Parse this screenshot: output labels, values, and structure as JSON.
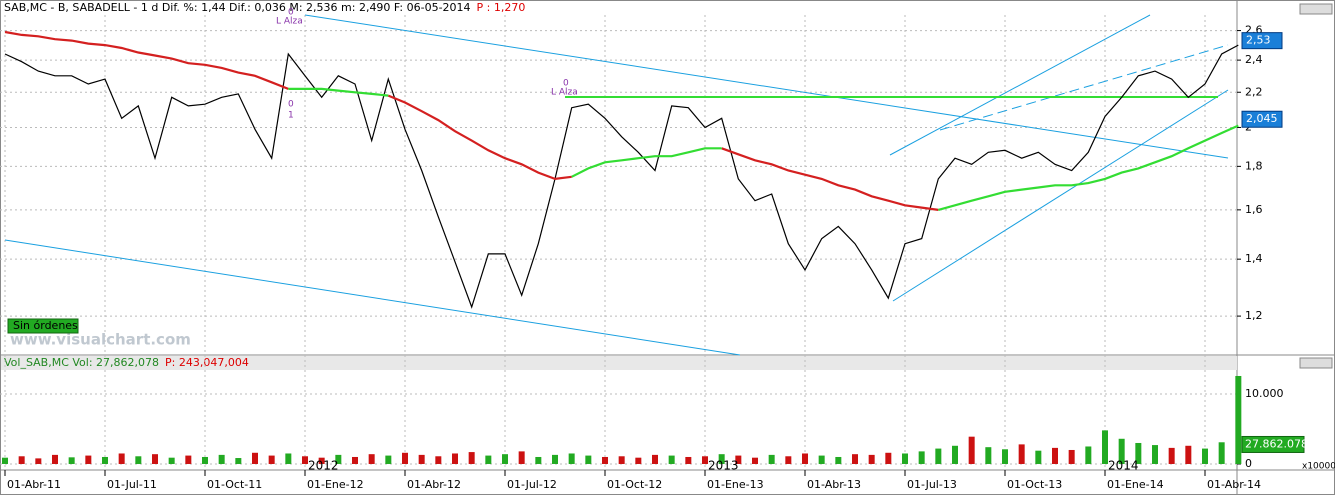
{
  "chart_data": [
    {
      "type": "line",
      "log_scale": true,
      "header": "SAB,MC - B, SABADELL -  1 d Dif. %: 1,44 Dif.: 0,036 M: 2,536 m: 2,490 F: 06-05-2014",
      "header_p": "P : 1,270",
      "categories": [
        "01-Abr-11",
        null,
        null,
        null,
        null,
        null,
        "01-Jul-11",
        null,
        null,
        null,
        null,
        null,
        "01-Oct-11",
        null,
        null,
        null,
        null,
        null,
        "01-Ene-12",
        null,
        null,
        null,
        null,
        null,
        "01-Abr-12",
        null,
        null,
        null,
        null,
        null,
        "01-Jul-12",
        null,
        null,
        null,
        null,
        null,
        "01-Oct-12",
        null,
        null,
        null,
        null,
        null,
        "01-Ene-13",
        null,
        null,
        null,
        null,
        null,
        "01-Abr-13",
        null,
        null,
        null,
        null,
        null,
        "01-Jul-13",
        null,
        null,
        null,
        null,
        null,
        "01-Oct-13",
        null,
        null,
        null,
        null,
        null,
        "01-Ene-14",
        null,
        null,
        null,
        null,
        null,
        "01-Abr-14",
        null,
        null
      ],
      "series": [
        {
          "color": "#000000",
          "values": [
            2.44,
            2.39,
            2.33,
            2.3,
            2.3,
            2.25,
            2.28,
            2.05,
            2.12,
            1.84,
            2.17,
            2.12,
            2.13,
            2.17,
            2.19,
            1.99,
            1.84,
            2.44,
            2.3,
            2.17,
            2.3,
            2.25,
            1.93,
            2.28,
            1.99,
            1.78,
            1.57,
            1.39,
            1.23,
            1.42,
            1.42,
            1.27,
            1.46,
            1.74,
            2.11,
            2.13,
            2.05,
            1.95,
            1.87,
            1.78,
            2.12,
            2.11,
            2.0,
            2.05,
            1.74,
            1.64,
            1.67,
            1.46,
            1.36,
            1.48,
            1.53,
            1.46,
            1.36,
            1.26,
            1.46,
            1.48,
            1.74,
            1.84,
            1.81,
            1.87,
            1.88,
            1.84,
            1.87,
            1.81,
            1.78,
            1.87,
            2.06,
            2.17,
            2.3,
            2.33,
            2.28,
            2.17,
            2.25,
            2.44,
            2.5
          ]
        },
        {
          "color": "#d42020",
          "values": [
            2.59,
            2.57,
            2.56,
            2.54,
            2.53,
            2.51,
            2.5,
            2.48,
            2.45,
            2.43,
            2.41,
            2.38,
            2.37,
            2.35,
            2.32,
            2.3,
            2.26,
            2.22,
            null,
            null,
            null,
            null,
            null,
            2.18,
            2.14,
            2.09,
            2.04,
            1.98,
            1.93,
            1.88,
            1.84,
            1.81,
            1.77,
            1.74,
            1.75,
            null,
            null,
            null,
            null,
            null,
            null,
            null,
            null,
            1.89,
            1.86,
            1.83,
            1.81,
            1.78,
            1.76,
            1.74,
            1.71,
            1.69,
            1.66,
            1.64,
            1.62,
            1.61,
            1.6,
            null,
            null,
            null,
            null,
            null,
            null,
            null,
            null,
            null,
            null,
            null,
            null,
            null,
            null,
            null,
            null,
            null,
            null
          ]
        },
        {
          "color": "#33dd33",
          "values": [
            null,
            null,
            null,
            null,
            null,
            null,
            null,
            null,
            null,
            null,
            null,
            null,
            null,
            null,
            null,
            null,
            null,
            2.22,
            2.22,
            2.22,
            2.21,
            2.2,
            2.19,
            2.18,
            null,
            null,
            null,
            null,
            null,
            null,
            null,
            null,
            null,
            null,
            1.75,
            1.79,
            1.82,
            1.83,
            1.84,
            1.85,
            1.85,
            1.87,
            1.89,
            1.89,
            null,
            null,
            null,
            null,
            null,
            null,
            null,
            null,
            null,
            null,
            null,
            null,
            1.6,
            1.62,
            1.64,
            1.66,
            1.68,
            1.69,
            1.7,
            1.71,
            1.71,
            1.72,
            1.74,
            1.77,
            1.79,
            1.82,
            1.85,
            1.89,
            1.93,
            1.97,
            2.01
          ]
        }
      ],
      "ylim": [
        1.08,
        2.69
      ],
      "yticks": [
        {
          "value": 1.2,
          "label": "1,2"
        },
        {
          "value": 1.4,
          "label": "1,4"
        },
        {
          "value": 1.6,
          "label": "1,6"
        },
        {
          "value": 1.8,
          "label": "1,8"
        },
        2,
        {
          "value": 2.2,
          "label": "2,2"
        },
        {
          "value": 2.4,
          "label": "2,4"
        },
        {
          "value": 2.6,
          "label": "2,6"
        }
      ],
      "last_price": {
        "value": 2.53,
        "label": "2,53"
      },
      "last_average": {
        "value": 2.045,
        "label": "2,045"
      },
      "annotations": [
        "L Alza",
        "0",
        "1",
        "0",
        "L Alza"
      ],
      "status": "Sin órdenes",
      "watermark": "www.visualchart.com"
    },
    {
      "type": "bar",
      "header": "Vol_SAB,MC Vol: 27,862,078",
      "header_p": "P: 243,047,004",
      "values": [
        900,
        1100,
        800,
        1300,
        950,
        1200,
        1000,
        1500,
        1100,
        1400,
        900,
        1200,
        1000,
        1300,
        850,
        1600,
        1200,
        1500,
        1100,
        900,
        1300,
        1000,
        1400,
        1200,
        1600,
        1300,
        1100,
        1500,
        1700,
        1200,
        1400,
        1800,
        1000,
        1300,
        1500,
        1200,
        1000,
        1100,
        900,
        1300,
        1200,
        1000,
        1100,
        1400,
        1200,
        900,
        1300,
        1100,
        1500,
        1200,
        1000,
        1400,
        1300,
        1600,
        1500,
        1800,
        2200,
        2600,
        3900,
        2400,
        2100,
        2800,
        1900,
        2300,
        2000,
        2500,
        4800,
        3600,
        3000,
        2700,
        2300,
        2600,
        2200,
        3100,
        12570
      ],
      "up_color": "#22aa22",
      "down_color": "#cc1111",
      "ylim": [
        -860,
        13140
      ],
      "yticks": [
        0,
        {
          "value": 10000,
          "label": "10.000"
        }
      ],
      "last_volume": {
        "value": 2786.2078,
        "label": "27.862.078"
      },
      "multiplier": "x10000",
      "year_labels": [
        {
          "category": "01-Ene-12",
          "label": "2012"
        },
        {
          "category": "01-Ene-13",
          "label": "2013"
        },
        {
          "category": "01-Ene-14",
          "label": "2014"
        }
      ]
    }
  ]
}
